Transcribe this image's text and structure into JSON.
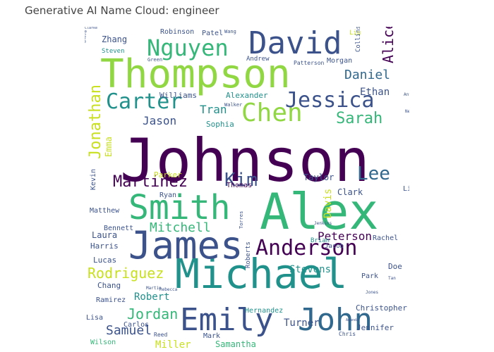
{
  "title": "Generative AI Name Cloud: engineer",
  "palette": {
    "purple": "#440154",
    "indigo": "#3b528b",
    "blue": "#31688e",
    "teal": "#21918c",
    "green": "#35b779",
    "lime": "#90d743",
    "yellow": "#c8e020",
    "gold": "#fde725"
  },
  "words": [
    {
      "text": "Johnson",
      "size": 84,
      "color": "purple"
    },
    {
      "text": "Alex",
      "size": 70,
      "color": "green"
    },
    {
      "text": "Thompson",
      "size": 56,
      "color": "lime"
    },
    {
      "text": "Michael",
      "size": 58,
      "color": "teal"
    },
    {
      "text": "James",
      "size": 54,
      "color": "indigo"
    },
    {
      "text": "Smith",
      "size": 48,
      "color": "green"
    },
    {
      "text": "Emily",
      "size": 44,
      "color": "indigo"
    },
    {
      "text": "John",
      "size": 44,
      "color": "blue"
    },
    {
      "text": "David",
      "size": 44,
      "color": "indigo"
    },
    {
      "text": "Chen",
      "size": 36,
      "color": "lime"
    },
    {
      "text": "Nguyen",
      "size": 32,
      "color": "green"
    },
    {
      "text": "Carter",
      "size": 30,
      "color": "teal"
    },
    {
      "text": "Jessica",
      "size": 30,
      "color": "indigo"
    },
    {
      "text": "Anderson",
      "size": 30,
      "color": "purple"
    },
    {
      "text": "Jonathan",
      "size": 22,
      "color": "yellow"
    },
    {
      "text": "Martinez",
      "size": 22,
      "color": "purple"
    },
    {
      "text": "Kim",
      "size": 26,
      "color": "indigo"
    },
    {
      "text": "Lee",
      "size": 26,
      "color": "blue"
    },
    {
      "text": "Sarah",
      "size": 22,
      "color": "green"
    },
    {
      "text": "Alice",
      "size": 20,
      "color": "purple"
    },
    {
      "text": "Daniel",
      "size": 18,
      "color": "blue"
    },
    {
      "text": "Rodriguez",
      "size": 20,
      "color": "yellow"
    },
    {
      "text": "Jordan",
      "size": 20,
      "color": "green"
    },
    {
      "text": "Mitchell",
      "size": 18,
      "color": "green"
    },
    {
      "text": "Samuel",
      "size": 18,
      "color": "indigo"
    },
    {
      "text": "Jason",
      "size": 16,
      "color": "indigo"
    },
    {
      "text": "Tran",
      "size": 16,
      "color": "teal"
    },
    {
      "text": "Peterson",
      "size": 16,
      "color": "purple"
    },
    {
      "text": "Stevens",
      "size": 14,
      "color": "teal"
    },
    {
      "text": "Turner",
      "size": 14,
      "color": "indigo"
    },
    {
      "text": "Miller",
      "size": 14,
      "color": "yellow"
    },
    {
      "text": "Robert",
      "size": 14,
      "color": "teal"
    },
    {
      "text": "Davis",
      "size": 14,
      "color": "yellow"
    },
    {
      "text": "Ethan",
      "size": 14,
      "color": "indigo"
    },
    {
      "text": "Emma",
      "size": 12,
      "color": "yellow"
    },
    {
      "text": "Zhang",
      "size": 12,
      "color": "indigo"
    },
    {
      "text": "Sophia",
      "size": 11,
      "color": "teal"
    },
    {
      "text": "Williams",
      "size": 11,
      "color": "indigo"
    },
    {
      "text": "Alexander",
      "size": 11,
      "color": "teal"
    },
    {
      "text": "Taylor",
      "size": 12,
      "color": "indigo"
    },
    {
      "text": "Clark",
      "size": 12,
      "color": "indigo"
    },
    {
      "text": "Laura",
      "size": 12,
      "color": "indigo"
    },
    {
      "text": "Harris",
      "size": 11,
      "color": "indigo"
    },
    {
      "text": "Lucas",
      "size": 11,
      "color": "indigo"
    },
    {
      "text": "Chang",
      "size": 11,
      "color": "indigo"
    },
    {
      "text": "Christopher",
      "size": 11,
      "color": "indigo"
    },
    {
      "text": "Hernandez",
      "size": 10,
      "color": "teal"
    },
    {
      "text": "Samantha",
      "size": 12,
      "color": "green"
    },
    {
      "text": "Jennifer",
      "size": 11,
      "color": "indigo"
    },
    {
      "text": "Mark",
      "size": 10,
      "color": "indigo"
    },
    {
      "text": "Lisa",
      "size": 10,
      "color": "indigo"
    },
    {
      "text": "Wilson",
      "size": 10,
      "color": "green"
    },
    {
      "text": "Carlos",
      "size": 10,
      "color": "indigo"
    },
    {
      "text": "Ramirez",
      "size": 10,
      "color": "indigo"
    },
    {
      "text": "Doe",
      "size": 11,
      "color": "indigo"
    },
    {
      "text": "Park",
      "size": 10,
      "color": "indigo"
    },
    {
      "text": "Rachel",
      "size": 10,
      "color": "indigo"
    },
    {
      "text": "Brian",
      "size": 9,
      "color": "teal"
    },
    {
      "text": "Jacob",
      "size": 9,
      "color": "indigo"
    },
    {
      "text": "Thomas",
      "size": 10,
      "color": "purple"
    },
    {
      "text": "Ryan",
      "size": 10,
      "color": "indigo"
    },
    {
      "text": "Parker",
      "size": 11,
      "color": "yellow"
    },
    {
      "text": "Kevin",
      "size": 10,
      "color": "indigo"
    },
    {
      "text": "Matthew",
      "size": 10,
      "color": "indigo"
    },
    {
      "text": "Bennett",
      "size": 10,
      "color": "indigo"
    },
    {
      "text": "Lin",
      "size": 10,
      "color": "indigo"
    },
    {
      "text": "Robinson",
      "size": 10,
      "color": "indigo"
    },
    {
      "text": "Patel",
      "size": 10,
      "color": "indigo"
    },
    {
      "text": "Andrew",
      "size": 9,
      "color": "indigo"
    },
    {
      "text": "Patterson",
      "size": 8,
      "color": "indigo"
    },
    {
      "text": "Morgan",
      "size": 10,
      "color": "indigo"
    },
    {
      "text": "Collins",
      "size": 9,
      "color": "indigo"
    },
    {
      "text": "Steven",
      "size": 9,
      "color": "teal"
    },
    {
      "text": "Roberts",
      "size": 9,
      "color": "indigo"
    },
    {
      "text": "Reed",
      "size": 8,
      "color": "indigo"
    },
    {
      "text": "Chris",
      "size": 8,
      "color": "indigo"
    },
    {
      "text": "Liu",
      "size": 9,
      "color": "yellow"
    },
    {
      "text": "Green",
      "size": 7,
      "color": "indigo"
    },
    {
      "text": "Wang",
      "size": 7,
      "color": "indigo"
    },
    {
      "text": "Walker",
      "size": 7,
      "color": "indigo"
    },
    {
      "text": "Anthony",
      "size": 6,
      "color": "indigo"
    },
    {
      "text": "Jenkins",
      "size": 6,
      "color": "indigo"
    },
    {
      "text": "Torres",
      "size": 7,
      "color": "indigo"
    },
    {
      "text": "Martin",
      "size": 6,
      "color": "indigo"
    },
    {
      "text": "Rebecca",
      "size": 6,
      "color": "indigo"
    },
    {
      "text": "Tan",
      "size": 6,
      "color": "indigo"
    },
    {
      "text": "Brown",
      "size": 6,
      "color": "indigo"
    },
    {
      "text": "Amanda",
      "size": 5,
      "color": "indigo"
    },
    {
      "text": "Jones",
      "size": 6,
      "color": "indigo"
    },
    {
      "text": "Nelson",
      "size": 6,
      "color": "indigo"
    },
    {
      "text": "Clarke",
      "size": 5,
      "color": "indigo"
    }
  ]
}
